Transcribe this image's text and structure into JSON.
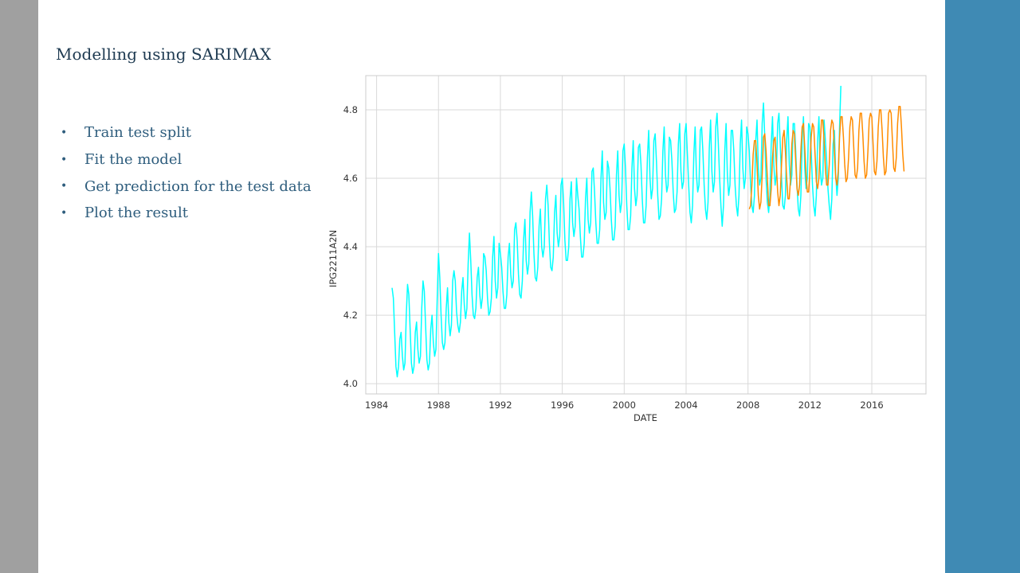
{
  "slide": {
    "title": "Modelling using SARIMAX",
    "bullets": [
      "Train test split",
      "Fit the model",
      "Get prediction for the test data",
      "Plot the result"
    ]
  },
  "colors": {
    "left_bar": "#a0a0a0",
    "right_bar": "#3f8ab4",
    "actual": "#00ffff",
    "predicted": "#ff8c00",
    "grid": "#d9d9d9"
  },
  "chart_data": {
    "type": "line",
    "title": "",
    "xlabel": "DATE",
    "ylabel": "IPG2211A2N",
    "xlim": [
      1983.3,
      2019.5
    ],
    "ylim": [
      3.97,
      4.9
    ],
    "xticks": [
      1984,
      1988,
      1992,
      1996,
      2000,
      2004,
      2008,
      2012,
      2016
    ],
    "xtick_labels": [
      "1984",
      "1988",
      "1992",
      "1996",
      "2000",
      "2004",
      "2008",
      "2012",
      "2016"
    ],
    "yticks": [
      4.0,
      4.2,
      4.4,
      4.6,
      4.8
    ],
    "ytick_labels": [
      "4.0",
      "4.2",
      "4.4",
      "4.6",
      "4.8"
    ],
    "grid": true,
    "frequency": "monthly",
    "series": [
      {
        "role": "actual",
        "start": 1985.0,
        "values": [
          4.28,
          4.25,
          4.15,
          4.05,
          4.02,
          4.05,
          4.13,
          4.15,
          4.08,
          4.04,
          4.06,
          4.2,
          4.29,
          4.26,
          4.16,
          4.06,
          4.03,
          4.05,
          4.15,
          4.18,
          4.1,
          4.06,
          4.08,
          4.22,
          4.3,
          4.27,
          4.17,
          4.07,
          4.04,
          4.06,
          4.16,
          4.2,
          4.12,
          4.08,
          4.1,
          4.25,
          4.38,
          4.31,
          4.2,
          4.12,
          4.1,
          4.12,
          4.22,
          4.28,
          4.18,
          4.14,
          4.17,
          4.3,
          4.33,
          4.3,
          4.21,
          4.17,
          4.15,
          4.18,
          4.27,
          4.31,
          4.23,
          4.19,
          4.22,
          4.35,
          4.44,
          4.36,
          4.26,
          4.2,
          4.19,
          4.22,
          4.31,
          4.34,
          4.26,
          4.22,
          4.25,
          4.38,
          4.37,
          4.33,
          4.25,
          4.2,
          4.21,
          4.25,
          4.37,
          4.43,
          4.3,
          4.25,
          4.28,
          4.41,
          4.38,
          4.34,
          4.27,
          4.22,
          4.22,
          4.26,
          4.37,
          4.41,
          4.32,
          4.28,
          4.3,
          4.45,
          4.47,
          4.42,
          4.32,
          4.26,
          4.25,
          4.3,
          4.42,
          4.48,
          4.36,
          4.32,
          4.35,
          4.5,
          4.56,
          4.49,
          4.38,
          4.31,
          4.3,
          4.34,
          4.46,
          4.51,
          4.4,
          4.37,
          4.4,
          4.54,
          4.58,
          4.52,
          4.41,
          4.34,
          4.33,
          4.37,
          4.5,
          4.55,
          4.44,
          4.4,
          4.43,
          4.58,
          4.6,
          4.53,
          4.42,
          4.36,
          4.36,
          4.4,
          4.54,
          4.59,
          4.47,
          4.43,
          4.46,
          4.6,
          4.55,
          4.51,
          4.43,
          4.37,
          4.37,
          4.41,
          4.54,
          4.6,
          4.48,
          4.44,
          4.47,
          4.62,
          4.63,
          4.56,
          4.47,
          4.41,
          4.41,
          4.45,
          4.6,
          4.68,
          4.53,
          4.48,
          4.5,
          4.65,
          4.63,
          4.57,
          4.48,
          4.42,
          4.42,
          4.46,
          4.61,
          4.68,
          4.55,
          4.5,
          4.53,
          4.68,
          4.7,
          4.63,
          4.52,
          4.45,
          4.45,
          4.49,
          4.63,
          4.71,
          4.57,
          4.52,
          4.55,
          4.69,
          4.7,
          4.64,
          4.54,
          4.47,
          4.47,
          4.52,
          4.66,
          4.74,
          4.6,
          4.54,
          4.57,
          4.71,
          4.73,
          4.65,
          4.55,
          4.48,
          4.49,
          4.54,
          4.68,
          4.75,
          4.61,
          4.56,
          4.58,
          4.72,
          4.71,
          4.65,
          4.56,
          4.5,
          4.51,
          4.56,
          4.7,
          4.76,
          4.62,
          4.57,
          4.59,
          4.73,
          4.76,
          4.67,
          4.58,
          4.5,
          4.47,
          4.52,
          4.67,
          4.75,
          4.61,
          4.56,
          4.58,
          4.74,
          4.75,
          4.68,
          4.58,
          4.51,
          4.48,
          4.53,
          4.69,
          4.77,
          4.62,
          4.56,
          4.59,
          4.75,
          4.79,
          4.7,
          4.6,
          4.52,
          4.46,
          4.52,
          4.68,
          4.76,
          4.61,
          4.55,
          4.58,
          4.74,
          4.74,
          4.68,
          4.58,
          4.52,
          4.49,
          4.55,
          4.7,
          4.77,
          4.63,
          4.57,
          4.6,
          4.75,
          4.73,
          4.68,
          4.58,
          4.52,
          4.5,
          4.55,
          4.71,
          4.77,
          4.63,
          4.58,
          4.6,
          4.76,
          4.82,
          4.72,
          4.6,
          4.53,
          4.5,
          4.55,
          4.7,
          4.78,
          4.64,
          4.58,
          4.61,
          4.76,
          4.79,
          4.7,
          4.6,
          4.52,
          4.51,
          4.55,
          4.71,
          4.78,
          4.64,
          4.58,
          4.61,
          4.76,
          4.76,
          4.68,
          4.58,
          4.51,
          4.49,
          4.55,
          4.71,
          4.78,
          4.63,
          4.57,
          4.6,
          4.76,
          4.75,
          4.68,
          4.58,
          4.52,
          4.49,
          4.55,
          4.71,
          4.78,
          4.63,
          4.58,
          4.6,
          4.77,
          4.71,
          4.65,
          4.57,
          4.52,
          4.48,
          4.54,
          4.7,
          4.74,
          4.61,
          4.55,
          4.6,
          4.75,
          4.87
        ]
      },
      {
        "role": "predicted",
        "start": 2008.083,
        "values": [
          4.51,
          4.52,
          4.58,
          4.67,
          4.71,
          4.71,
          4.64,
          4.55,
          4.51,
          4.53,
          4.61,
          4.72,
          4.73,
          4.68,
          4.6,
          4.52,
          4.52,
          4.57,
          4.66,
          4.71,
          4.72,
          4.64,
          4.56,
          4.52,
          4.55,
          4.64,
          4.72,
          4.74,
          4.68,
          4.6,
          4.54,
          4.54,
          4.6,
          4.7,
          4.74,
          4.73,
          4.65,
          4.57,
          4.55,
          4.58,
          4.68,
          4.75,
          4.76,
          4.69,
          4.61,
          4.56,
          4.56,
          4.62,
          4.72,
          4.76,
          4.75,
          4.67,
          4.59,
          4.57,
          4.6,
          4.7,
          4.77,
          4.77,
          4.71,
          4.63,
          4.58,
          4.58,
          4.64,
          4.74,
          4.77,
          4.76,
          4.68,
          4.6,
          4.58,
          4.62,
          4.72,
          4.78,
          4.78,
          4.72,
          4.64,
          4.59,
          4.6,
          4.66,
          4.75,
          4.78,
          4.77,
          4.69,
          4.61,
          4.6,
          4.63,
          4.74,
          4.79,
          4.79,
          4.73,
          4.65,
          4.6,
          4.61,
          4.68,
          4.77,
          4.79,
          4.78,
          4.7,
          4.62,
          4.61,
          4.65,
          4.75,
          4.8,
          4.8,
          4.74,
          4.66,
          4.61,
          4.62,
          4.69,
          4.79,
          4.8,
          4.79,
          4.71,
          4.63,
          4.62,
          4.66,
          4.76,
          4.81,
          4.81,
          4.75,
          4.67,
          4.62
        ]
      }
    ]
  }
}
